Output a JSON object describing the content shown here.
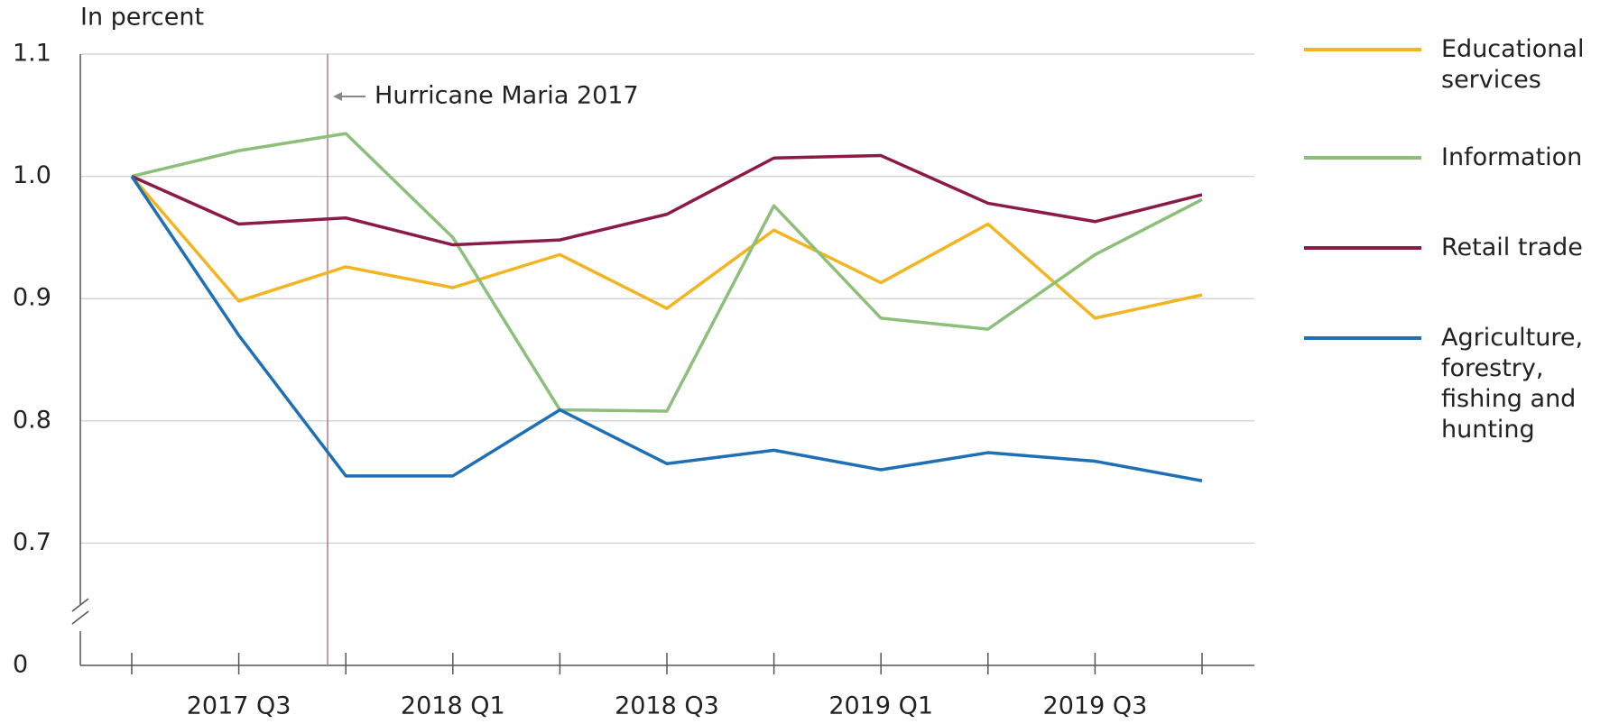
{
  "chart_data": {
    "type": "line",
    "y_axis_label": "In percent",
    "annotation": "Hurricane Maria 2017",
    "categories": [
      null,
      "2017 Q3",
      null,
      "2018 Q1",
      null,
      "2018 Q3",
      null,
      "2019 Q1",
      null,
      "2019 Q3",
      null
    ],
    "series": [
      {
        "name": "Educational services",
        "color": "#f2b521",
        "values": [
          1.0,
          0.898,
          0.926,
          0.909,
          0.936,
          0.892,
          0.956,
          0.913,
          0.961,
          0.884,
          0.903
        ]
      },
      {
        "name": "Information",
        "color": "#8cc07a",
        "values": [
          1.0,
          1.021,
          1.035,
          0.95,
          0.809,
          0.808,
          0.976,
          0.884,
          0.875,
          0.936,
          0.981
        ]
      },
      {
        "name": "Retail trade",
        "color": "#8b1a47",
        "values": [
          1.0,
          0.961,
          0.966,
          0.944,
          0.948,
          0.969,
          1.015,
          1.017,
          0.978,
          0.963,
          0.985
        ]
      },
      {
        "name": "Agriculture, forestry, fishing and hunting",
        "color": "#1f6fb4",
        "values": [
          1.0,
          0.87,
          0.755,
          0.755,
          0.809,
          0.765,
          0.776,
          0.76,
          0.774,
          0.767,
          0.751
        ]
      }
    ],
    "ylim": [
      0,
      1.1
    ],
    "axis_break": [
      0,
      0.7
    ],
    "yticks": [
      0,
      0.7,
      0.8,
      {
        "value": 0.9,
        "label": "0.9"
      },
      {
        "value": 1.0,
        "label": "1.0"
      },
      1.1
    ],
    "grid": true
  }
}
